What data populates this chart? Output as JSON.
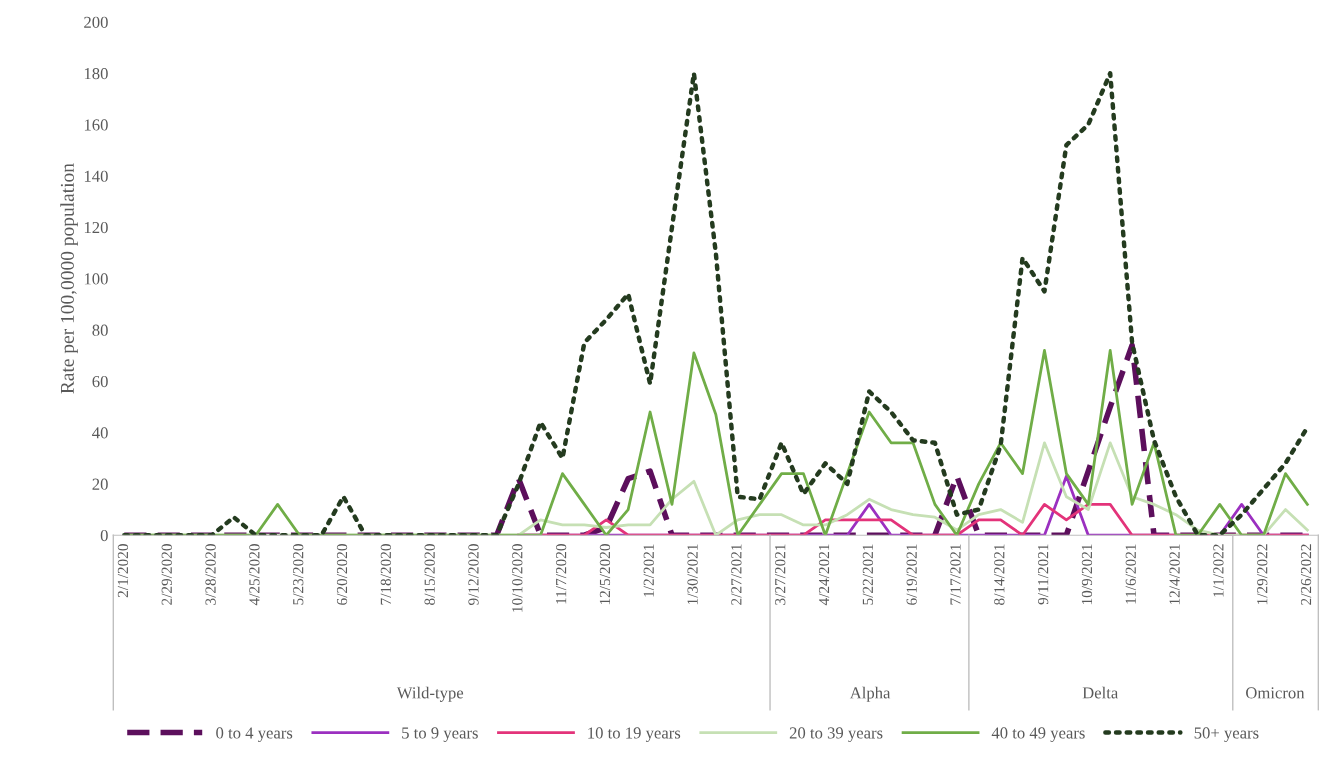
{
  "chart_data": {
    "type": "line",
    "ylabel": "Rate per 100,0000 population",
    "categories": [
      "2/1/2020",
      null,
      "2/29/2020",
      null,
      "3/28/2020",
      null,
      "4/25/2020",
      null,
      "5/23/2020",
      null,
      "6/20/2020",
      null,
      "7/18/2020",
      null,
      "8/15/2020",
      null,
      "9/12/2020",
      null,
      "10/10/2020",
      null,
      "11/7/2020",
      null,
      "12/5/2020",
      null,
      "1/2/2021",
      null,
      "1/30/2021",
      null,
      "2/27/2021",
      null,
      "3/27/2021",
      null,
      "4/24/2021",
      null,
      "5/22/2021",
      null,
      "6/19/2021",
      null,
      "7/17/2021",
      null,
      "8/14/2021",
      null,
      "9/11/2021",
      null,
      "10/9/2021",
      null,
      "11/6/2021",
      null,
      "12/4/2021",
      null,
      "1/1/2022",
      null,
      "1/29/2022",
      null,
      "2/26/2022"
    ],
    "series": [
      {
        "name": "0 to 4 years",
        "color": "#5c0f5c",
        "line_style": "dashed",
        "values": [
          0,
          0,
          0,
          0,
          0,
          0,
          0,
          0,
          0,
          0,
          0,
          0,
          0,
          0,
          0,
          0,
          0,
          0,
          22,
          0,
          0,
          0,
          3,
          22,
          25,
          0,
          0,
          0,
          0,
          0,
          0,
          0,
          0,
          0,
          0,
          0,
          0,
          0,
          23,
          0,
          0,
          0,
          0,
          0,
          25,
          50,
          74,
          0,
          0,
          0,
          0,
          0,
          0,
          0,
          0
        ]
      },
      {
        "name": "5 to 9 years",
        "color": "#9b30c0",
        "line_style": "solid",
        "values": [
          null,
          null,
          null,
          null,
          null,
          null,
          null,
          null,
          null,
          null,
          null,
          null,
          null,
          null,
          null,
          null,
          null,
          null,
          0,
          0,
          0,
          0,
          0,
          0,
          0,
          0,
          0,
          0,
          0,
          0,
          0,
          0,
          0,
          0,
          12,
          0,
          0,
          0,
          0,
          0,
          0,
          0,
          0,
          23,
          0,
          0,
          0,
          0,
          0,
          0,
          0,
          12,
          0,
          0,
          0
        ]
      },
      {
        "name": "10 to 19 years",
        "color": "#e3337a",
        "line_style": "solid",
        "values": [
          null,
          null,
          null,
          null,
          null,
          null,
          null,
          null,
          null,
          null,
          null,
          null,
          null,
          null,
          null,
          null,
          null,
          null,
          0,
          0,
          0,
          0,
          6,
          0,
          0,
          0,
          0,
          0,
          0,
          0,
          0,
          0,
          6,
          6,
          6,
          6,
          0,
          0,
          0,
          6,
          6,
          0,
          12,
          6,
          12,
          12,
          0,
          0,
          0,
          0,
          0,
          0,
          0,
          0,
          0
        ]
      },
      {
        "name": "20 to 39 years",
        "color": "#c6e0b4",
        "line_style": "solid",
        "values": [
          0,
          0,
          0,
          0,
          0,
          0,
          0,
          0,
          0,
          0,
          0,
          0,
          0,
          0,
          0,
          0,
          0,
          0,
          0,
          6,
          4,
          4,
          3,
          4,
          4,
          14,
          21,
          0,
          6,
          8,
          8,
          4,
          4,
          8,
          14,
          10,
          8,
          7,
          2,
          8,
          10,
          5,
          36,
          15,
          10,
          36,
          15,
          12,
          8,
          2,
          0,
          0,
          0,
          10,
          2
        ]
      },
      {
        "name": "40 to 49 years",
        "color": "#70ad47",
        "line_style": "solid",
        "values": [
          0,
          0,
          0,
          0,
          0,
          0,
          0,
          12,
          0,
          0,
          0,
          0,
          0,
          0,
          0,
          0,
          0,
          0,
          0,
          0,
          24,
          12,
          0,
          10,
          48,
          12,
          71,
          47,
          0,
          12,
          24,
          24,
          0,
          24,
          48,
          36,
          36,
          12,
          0,
          20,
          36,
          24,
          72,
          24,
          12,
          72,
          12,
          36,
          0,
          0,
          12,
          0,
          0,
          24,
          12
        ]
      },
      {
        "name": "50+ years",
        "color": "#243b1f",
        "line_style": "dotted",
        "values": [
          0,
          0,
          0,
          0,
          0,
          7,
          0,
          0,
          0,
          0,
          15,
          0,
          0,
          0,
          0,
          0,
          0,
          0,
          20,
          44,
          30,
          75,
          84,
          94,
          59,
          120,
          180,
          110,
          15,
          14,
          36,
          16,
          28,
          20,
          56,
          48,
          37,
          36,
          8,
          10,
          35,
          108,
          95,
          152,
          160,
          180,
          75,
          37,
          15,
          0,
          0,
          8,
          18,
          28,
          42
        ]
      }
    ],
    "ylim": [
      0,
      200
    ],
    "yticks": [
      0,
      20,
      40,
      60,
      80,
      100,
      120,
      140,
      160,
      180,
      200
    ],
    "annotations": [
      "Wild-type",
      "Alpha",
      "Delta",
      "Omicron"
    ],
    "grid": false,
    "legend": "bottom",
    "marker": "none"
  }
}
